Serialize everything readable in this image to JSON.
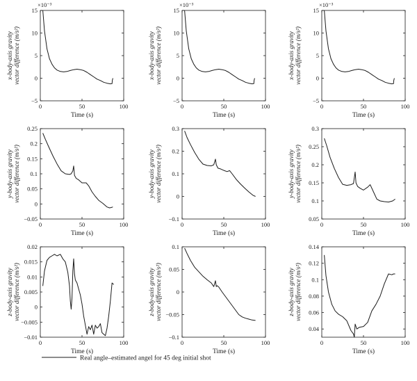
{
  "legend": {
    "label": "Real angle–estimated angel for 45 deg initial shot",
    "color": "#1a1a1a"
  },
  "chart_data": [
    {
      "type": "line",
      "xlabel": "Time (s)",
      "ylabel_lines": [
        "x-body-axis gravity",
        "vector difference (m/s²)"
      ],
      "scale_note": "×10⁻³",
      "xlim": [
        0,
        100
      ],
      "ylim": [
        -5,
        15
      ],
      "xticks": [
        0,
        50,
        100
      ],
      "yticks": [
        -5,
        0,
        5,
        10,
        15
      ],
      "yticklabels": [
        "−5",
        "0",
        "5",
        "10",
        "15"
      ],
      "series": [
        {
          "x": [
            3,
            5,
            8,
            11,
            14,
            17,
            20,
            24,
            28,
            32,
            36,
            40,
            44,
            48,
            52,
            56,
            60,
            64,
            68,
            72,
            76,
            80,
            84,
            86,
            86.3,
            87
          ],
          "y": [
            15,
            10.5,
            6.5,
            4.3,
            3.1,
            2.3,
            1.8,
            1.5,
            1.4,
            1.5,
            1.7,
            1.9,
            2.0,
            1.9,
            1.7,
            1.3,
            0.8,
            0.3,
            -0.2,
            -0.5,
            -0.9,
            -1.1,
            -1.25,
            -1.2,
            -0.5,
            0.0
          ]
        }
      ]
    },
    {
      "type": "line",
      "xlabel": "Time (s)",
      "ylabel_lines": [
        "x-body-axis gravity",
        "vector difference (m/s²)"
      ],
      "scale_note": "×10⁻³",
      "xlim": [
        0,
        100
      ],
      "ylim": [
        -5,
        15
      ],
      "xticks": [
        0,
        50,
        100
      ],
      "yticks": [
        -5,
        0,
        5,
        10,
        15
      ],
      "yticklabels": [
        "−5",
        "0",
        "5",
        "10",
        "15"
      ],
      "series": [
        {
          "x": [
            3,
            5,
            8,
            11,
            14,
            17,
            20,
            24,
            28,
            32,
            36,
            40,
            44,
            48,
            52,
            56,
            60,
            64,
            68,
            72,
            76,
            80,
            84,
            86,
            86.3,
            87
          ],
          "y": [
            15,
            10.5,
            6.5,
            4.3,
            3.1,
            2.3,
            1.8,
            1.5,
            1.4,
            1.5,
            1.7,
            1.9,
            2.0,
            1.9,
            1.7,
            1.3,
            0.8,
            0.3,
            -0.2,
            -0.5,
            -0.9,
            -1.1,
            -1.25,
            -1.2,
            -0.5,
            0.0
          ]
        }
      ]
    },
    {
      "type": "line",
      "xlabel": "Time (s)",
      "ylabel_lines": [
        "x-body-axis gravity",
        "vector difference (m/s²)"
      ],
      "scale_note": "×10⁻³",
      "xlim": [
        0,
        100
      ],
      "ylim": [
        -5,
        15
      ],
      "xticks": [
        0,
        50,
        100
      ],
      "yticks": [
        -5,
        0,
        5,
        10,
        15
      ],
      "yticklabels": [
        "−5",
        "0",
        "5",
        "10",
        "15"
      ],
      "series": [
        {
          "x": [
            3,
            5,
            8,
            11,
            14,
            17,
            20,
            24,
            28,
            32,
            36,
            40,
            44,
            48,
            52,
            56,
            60,
            64,
            68,
            72,
            76,
            80,
            84,
            86,
            86.3,
            87
          ],
          "y": [
            15,
            10.5,
            6.5,
            4.3,
            3.1,
            2.3,
            1.8,
            1.5,
            1.4,
            1.5,
            1.7,
            1.9,
            2.0,
            1.9,
            1.7,
            1.3,
            0.8,
            0.3,
            -0.2,
            -0.5,
            -0.9,
            -1.1,
            -1.25,
            -1.2,
            -0.5,
            0.0
          ]
        }
      ]
    },
    {
      "type": "line",
      "xlabel": "Time (s)",
      "ylabel_lines": [
        "y-body-axis gravity",
        "vector difference (m/s²)"
      ],
      "scale_note": "",
      "xlim": [
        0,
        100
      ],
      "ylim": [
        -0.05,
        0.25
      ],
      "xticks": [
        0,
        50,
        100
      ],
      "yticks": [
        -0.05,
        0,
        0.05,
        0.1,
        0.15,
        0.2,
        0.25
      ],
      "yticklabels": [
        "−0.05",
        "0",
        "0.05",
        "0.1",
        "0.15",
        "0.2",
        "0.25"
      ],
      "series": [
        {
          "x": [
            3,
            6,
            10,
            15,
            20,
            25,
            30,
            35,
            37,
            39,
            40,
            41,
            43,
            46,
            50,
            55,
            58,
            62,
            66,
            70,
            75,
            80,
            83,
            85,
            87
          ],
          "y": [
            0.235,
            0.215,
            0.19,
            0.16,
            0.133,
            0.11,
            0.1,
            0.098,
            0.1,
            0.11,
            0.126,
            0.095,
            0.085,
            0.08,
            0.07,
            0.07,
            0.06,
            0.04,
            0.025,
            0.012,
            0.002,
            -0.01,
            -0.013,
            -0.012,
            -0.01
          ]
        }
      ]
    },
    {
      "type": "line",
      "xlabel": "Time (s)",
      "ylabel_lines": [
        "y-body-axis gravity",
        "vector difference (m/s²)"
      ],
      "scale_note": "",
      "xlim": [
        0,
        100
      ],
      "ylim": [
        -0.1,
        0.3
      ],
      "xticks": [
        0,
        50,
        100
      ],
      "yticks": [
        -0.1,
        0,
        0.1,
        0.2,
        0.3
      ],
      "yticklabels": [
        "−0.1",
        "0",
        "0.1",
        "0.2",
        "0.3"
      ],
      "series": [
        {
          "x": [
            3,
            6,
            10,
            15,
            20,
            25,
            30,
            35,
            38,
            40,
            41,
            43,
            46,
            50,
            54,
            57,
            60,
            65,
            70,
            75,
            80,
            85,
            88
          ],
          "y": [
            0.29,
            0.26,
            0.23,
            0.195,
            0.165,
            0.143,
            0.137,
            0.135,
            0.14,
            0.165,
            0.14,
            0.125,
            0.122,
            0.115,
            0.11,
            0.114,
            0.1,
            0.075,
            0.055,
            0.037,
            0.02,
            0.005,
            0.0
          ]
        }
      ]
    },
    {
      "type": "line",
      "xlabel": "Time (s)",
      "ylabel_lines": [
        "y-body-axis gravity",
        "vector difference (m/s²)"
      ],
      "scale_note": "",
      "xlim": [
        0,
        100
      ],
      "ylim": [
        0.05,
        0.3
      ],
      "xticks": [
        0,
        50,
        100
      ],
      "yticks": [
        0.05,
        0.1,
        0.15,
        0.2,
        0.25,
        0.3
      ],
      "yticklabels": [
        "0.05",
        "0.1",
        "0.15",
        "0.2",
        "0.25",
        "0.3"
      ],
      "series": [
        {
          "x": [
            3,
            6,
            10,
            15,
            20,
            25,
            30,
            35,
            38,
            40,
            41,
            43,
            46,
            50,
            55,
            58,
            62,
            66,
            70,
            75,
            80,
            85,
            88
          ],
          "y": [
            0.273,
            0.252,
            0.22,
            0.19,
            0.165,
            0.146,
            0.143,
            0.145,
            0.148,
            0.18,
            0.15,
            0.14,
            0.135,
            0.13,
            0.138,
            0.145,
            0.125,
            0.105,
            0.1,
            0.098,
            0.097,
            0.1,
            0.105
          ]
        }
      ]
    },
    {
      "type": "line",
      "xlabel": "Time (s)",
      "ylabel_lines": [
        "z-body-axis gravity",
        "vector difference (m/s²)"
      ],
      "scale_note": "",
      "xlim": [
        0,
        100
      ],
      "ylim": [
        -0.01,
        0.02
      ],
      "xticks": [
        0,
        50,
        100
      ],
      "yticks": [
        -0.01,
        -0.005,
        0,
        0.005,
        0.01,
        0.015,
        0.02
      ],
      "yticklabels": [
        "−0.01",
        "−0.005",
        "0",
        "0.005",
        "0.01",
        "0.015",
        "0.02"
      ],
      "series": [
        {
          "x": [
            3,
            5,
            8,
            11,
            14,
            17,
            20,
            24,
            27,
            30,
            33,
            35,
            36,
            37,
            38,
            39,
            40,
            41,
            42,
            44,
            46,
            48,
            50,
            52,
            54,
            56,
            58,
            60,
            62,
            64,
            66,
            68,
            70,
            72,
            74,
            76,
            78,
            80,
            82,
            84,
            86,
            88
          ],
          "y": [
            0.007,
            0.012,
            0.0155,
            0.0165,
            0.017,
            0.0175,
            0.017,
            0.0175,
            0.016,
            0.015,
            0.0115,
            0.007,
            0.002,
            -0.0007,
            0.003,
            0.012,
            0.016,
            0.011,
            0.009,
            0.008,
            0.006,
            0.004,
            0.001,
            -0.003,
            -0.006,
            -0.009,
            -0.0065,
            -0.0075,
            -0.006,
            -0.009,
            -0.006,
            -0.007,
            -0.0065,
            -0.0055,
            -0.0085,
            -0.009,
            -0.0095,
            -0.007,
            -0.003,
            0.002,
            0.008,
            0.0075
          ]
        }
      ]
    },
    {
      "type": "line",
      "xlabel": "Time (s)",
      "ylabel_lines": [
        "z-body-axis gravity",
        "vector difference (m/s²)"
      ],
      "scale_note": "",
      "xlim": [
        0,
        100
      ],
      "ylim": [
        -0.1,
        0.1
      ],
      "xticks": [
        0,
        50,
        100
      ],
      "yticks": [
        -0.1,
        -0.05,
        0,
        0.05,
        0.1
      ],
      "yticklabels": [
        "−0.1",
        "−0.05",
        "0",
        "0.05",
        "0.1"
      ],
      "series": [
        {
          "x": [
            3,
            6,
            10,
            15,
            20,
            25,
            30,
            35,
            38,
            40,
            41,
            42,
            44,
            48,
            52,
            56,
            60,
            64,
            68,
            72,
            76,
            80,
            84,
            88
          ],
          "y": [
            0.097,
            0.085,
            0.07,
            0.055,
            0.045,
            0.035,
            0.027,
            0.02,
            0.012,
            0.025,
            0.012,
            0.014,
            0.011,
            0.0,
            -0.01,
            -0.02,
            -0.03,
            -0.04,
            -0.05,
            -0.055,
            -0.058,
            -0.06,
            -0.062,
            -0.063
          ]
        }
      ]
    },
    {
      "type": "line",
      "xlabel": "Time (s)",
      "ylabel_lines": [
        "z-body-axis gravity",
        "vector difference (m/s²)"
      ],
      "scale_note": "",
      "xlim": [
        0,
        100
      ],
      "ylim": [
        0.03,
        0.14
      ],
      "xticks": [
        0,
        50,
        100
      ],
      "yticks": [
        0.04,
        0.06,
        0.08,
        0.1,
        0.12,
        0.14
      ],
      "yticklabels": [
        "0.04",
        "0.06",
        "0.08",
        "0.1",
        "0.12",
        "0.14"
      ],
      "series": [
        {
          "x": [
            3,
            5,
            8,
            12,
            16,
            20,
            25,
            30,
            35,
            38,
            39,
            40,
            42,
            45,
            50,
            55,
            60,
            65,
            70,
            75,
            80,
            84,
            86,
            88
          ],
          "y": [
            0.13,
            0.105,
            0.085,
            0.07,
            0.062,
            0.058,
            0.055,
            0.05,
            0.038,
            0.034,
            0.03,
            0.046,
            0.04,
            0.042,
            0.043,
            0.048,
            0.062,
            0.07,
            0.08,
            0.095,
            0.107,
            0.106,
            0.107,
            0.107
          ]
        }
      ]
    }
  ]
}
